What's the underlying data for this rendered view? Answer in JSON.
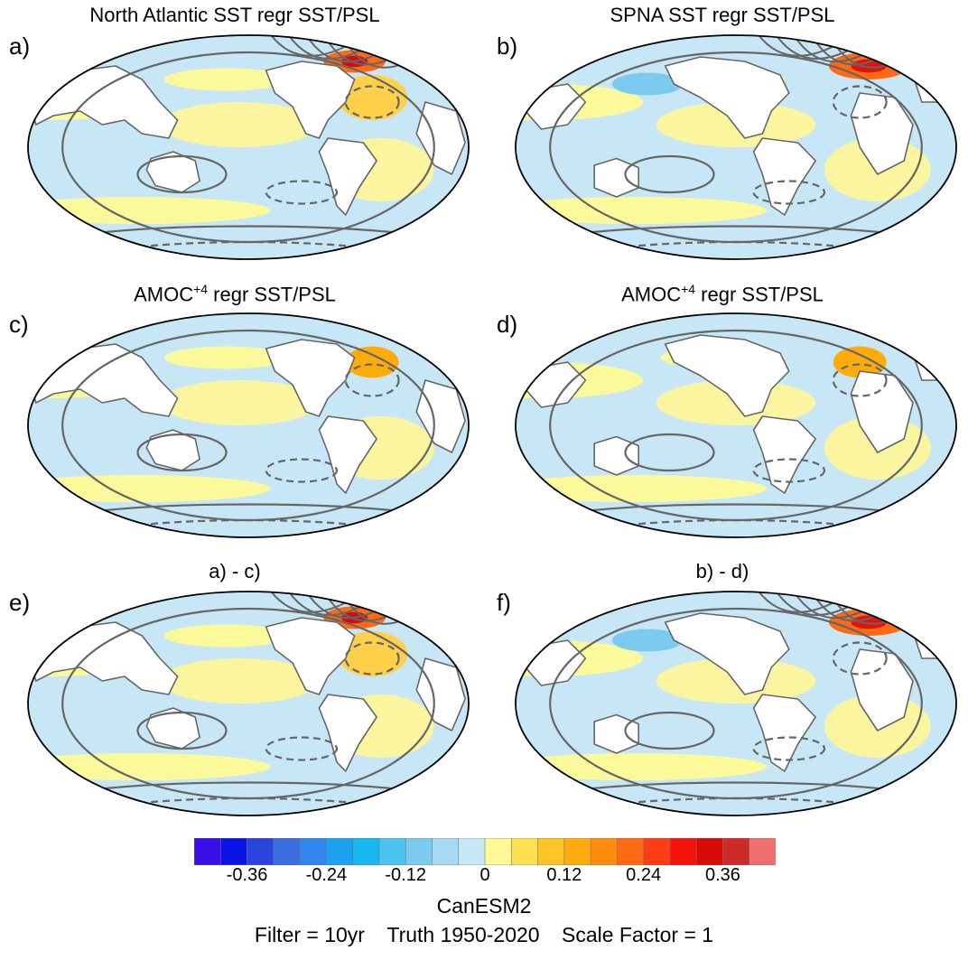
{
  "panels": [
    {
      "letter": "a)",
      "title": "North Atlantic SST regr SST/PSL",
      "title_sup": "",
      "title_rest": ""
    },
    {
      "letter": "b)",
      "title": "SPNA SST regr SST/PSL",
      "title_sup": "",
      "title_rest": ""
    },
    {
      "letter": "c)",
      "title": "AMOC",
      "title_sup": "+4",
      "title_rest": " regr SST/PSL"
    },
    {
      "letter": "d)",
      "title": "AMOC",
      "title_sup": "+4",
      "title_rest": " regr SST/PSL"
    },
    {
      "letter": "e)",
      "title": "a) - c)",
      "title_sup": "",
      "title_rest": ""
    },
    {
      "letter": "f)",
      "title": "b) - d)",
      "title_sup": "",
      "title_rest": ""
    }
  ],
  "colorbar": {
    "colors": [
      "#3a10e8",
      "#0a14e6",
      "#2a44de",
      "#3a6de0",
      "#2f86ee",
      "#1ca2f0",
      "#16b8ef",
      "#4ac4ef",
      "#7ccaf0",
      "#a6daf5",
      "#c8e7f6",
      "#fffa96",
      "#ffe050",
      "#ffc526",
      "#ffab0c",
      "#ff8c0c",
      "#ff6a14",
      "#ff3c14",
      "#f5140c",
      "#d80a0a",
      "#cd2a2a",
      "#ef7070"
    ],
    "labels": [
      "-0.36",
      "-0.24",
      "-0.12",
      "0",
      "0.12",
      "0.24",
      "0.36"
    ]
  },
  "footer": {
    "model": "CanESM2",
    "filter": "Filter = 10yr",
    "truth": "Truth 1950-2020",
    "scale": "Scale Factor = 1"
  }
}
